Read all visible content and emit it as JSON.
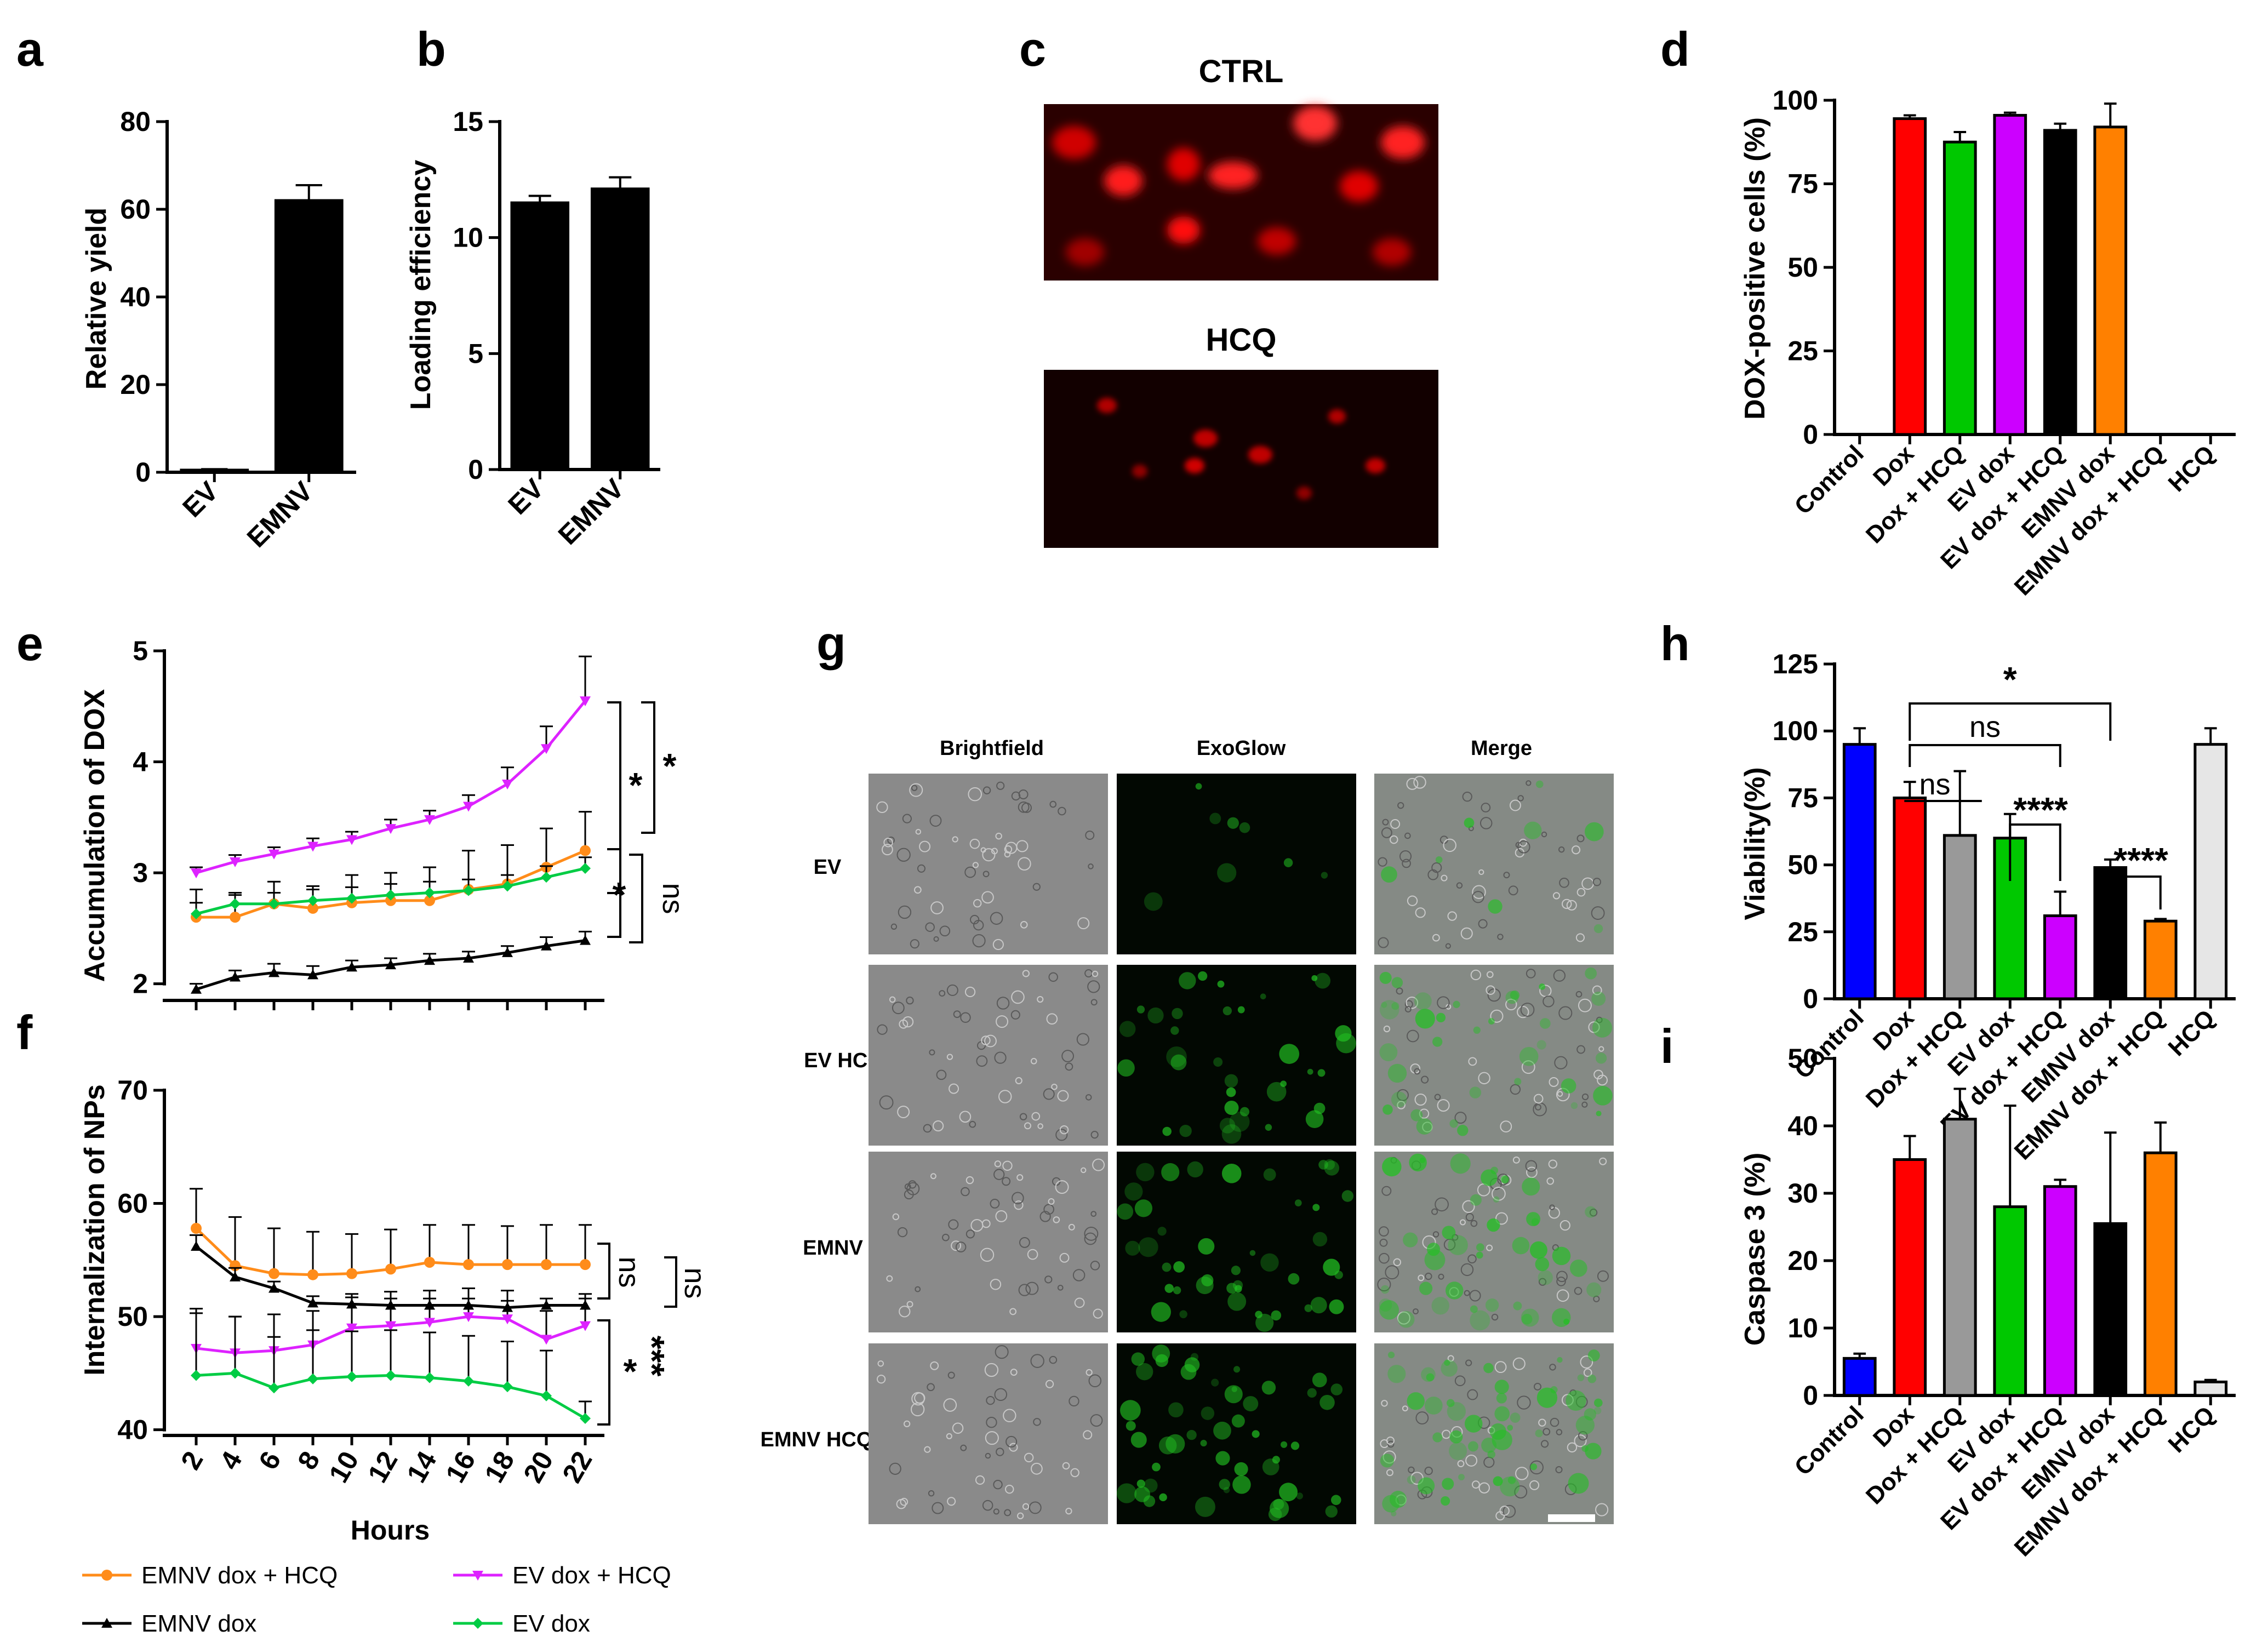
{
  "panel_letters": [
    "a",
    "b",
    "c",
    "d",
    "e",
    "f",
    "g",
    "h",
    "i"
  ],
  "colors": {
    "red": "#ff0000",
    "green": "#00c800",
    "magenta": "#cc00ff",
    "black": "#000000",
    "orange": "#ff8000",
    "blue": "#0000ff",
    "grey": "#999999",
    "lightgrey": "#e6e6e6",
    "orange_line": "#ff8c1a",
    "magenta_line": "#dd22ff",
    "green_line": "#00cc44"
  },
  "chart_data": [
    {
      "id": "a",
      "type": "bar",
      "title": "",
      "xlabel": "",
      "ylabel": "Relative yield",
      "categories": [
        "EV",
        "EMNV"
      ],
      "values": [
        0.5,
        62
      ],
      "errors": [
        0.2,
        3.5
      ],
      "ylim": [
        0,
        80
      ],
      "yticks": [
        0,
        20,
        40,
        60,
        80
      ],
      "bar_colors": [
        "black",
        "black"
      ]
    },
    {
      "id": "b",
      "type": "bar",
      "title": "",
      "xlabel": "",
      "ylabel": "Loading efficiency",
      "categories": [
        "EV",
        "EMNV"
      ],
      "values": [
        11.5,
        12.1
      ],
      "errors": [
        0.3,
        0.5
      ],
      "ylim": [
        0,
        15
      ],
      "yticks": [
        0,
        5,
        10,
        15
      ],
      "bar_colors": [
        "black",
        "black"
      ]
    },
    {
      "id": "d",
      "type": "bar",
      "title": "",
      "xlabel": "",
      "ylabel": "DOX-positive cells (%)",
      "categories": [
        "Control",
        "Dox",
        "Dox + HCQ",
        "EV dox",
        "EV dox + HCQ",
        "EMNV dox",
        "EMNV dox + HCQ",
        "HCQ"
      ],
      "values": [
        0,
        94.5,
        87.5,
        95.5,
        91,
        92,
        0,
        0
      ],
      "errors": [
        0,
        1,
        3,
        0.8,
        2,
        7,
        0,
        0
      ],
      "ylim": [
        0,
        100
      ],
      "yticks": [
        0,
        25,
        50,
        75,
        100
      ],
      "bar_colors": [
        "black",
        "red",
        "green",
        "magenta",
        "black",
        "orange",
        "black",
        "black"
      ]
    },
    {
      "id": "e",
      "type": "line",
      "title": "",
      "xlabel": "",
      "ylabel": "Accumulation of DOX",
      "x": [
        2,
        4,
        6,
        8,
        10,
        12,
        14,
        16,
        18,
        20,
        22
      ],
      "ylim": [
        1.85,
        5
      ],
      "yticks": [
        2,
        3,
        4,
        5
      ],
      "series": [
        {
          "name": "EV dox + HCQ",
          "color": "magenta_line",
          "values": [
            3.0,
            3.1,
            3.17,
            3.24,
            3.3,
            3.4,
            3.48,
            3.6,
            3.8,
            4.12,
            4.55
          ],
          "errors": [
            0.05,
            0.06,
            0.06,
            0.07,
            0.07,
            0.08,
            0.08,
            0.1,
            0.15,
            0.2,
            0.4
          ]
        },
        {
          "name": "EMNV dox + HCQ",
          "color": "orange_line",
          "values": [
            2.6,
            2.6,
            2.72,
            2.68,
            2.73,
            2.75,
            2.75,
            2.85,
            2.9,
            3.05,
            3.2
          ],
          "errors": [
            0.25,
            0.2,
            0.2,
            0.2,
            0.25,
            0.25,
            0.3,
            0.35,
            0.35,
            0.35,
            0.35
          ]
        },
        {
          "name": "EV dox",
          "color": "green_line",
          "values": [
            2.63,
            2.72,
            2.72,
            2.75,
            2.77,
            2.8,
            2.82,
            2.84,
            2.88,
            2.96,
            3.04
          ],
          "errors": [
            0.1,
            0.1,
            0.1,
            0.1,
            0.1,
            0.1,
            0.1,
            0.1,
            0.1,
            0.1,
            0.1
          ]
        },
        {
          "name": "EMNV dox",
          "color": "black",
          "values": [
            1.95,
            2.06,
            2.1,
            2.08,
            2.15,
            2.17,
            2.21,
            2.23,
            2.28,
            2.34,
            2.39
          ],
          "errors": [
            0.05,
            0.06,
            0.08,
            0.08,
            0.06,
            0.06,
            0.06,
            0.06,
            0.06,
            0.08,
            0.08
          ]
        }
      ],
      "significance": [
        {
          "label": "*"
        },
        {
          "label": "*"
        },
        {
          "label": "*"
        },
        {
          "label": "ns"
        }
      ]
    },
    {
      "id": "f",
      "type": "line",
      "title": "",
      "xlabel": "Hours",
      "ylabel": "Internalization of NPs",
      "x": [
        2,
        4,
        6,
        8,
        10,
        12,
        14,
        16,
        18,
        20,
        22
      ],
      "xticks": [
        "2",
        "4",
        "6",
        "8",
        "10",
        "12",
        "14",
        "16",
        "18",
        "20",
        "22"
      ],
      "ylim": [
        39.5,
        70
      ],
      "yticks": [
        40,
        50,
        60,
        70
      ],
      "series": [
        {
          "name": "EMNV dox + HCQ",
          "color": "orange_line",
          "values": [
            57.8,
            54.5,
            53.8,
            53.7,
            53.8,
            54.2,
            54.8,
            54.6,
            54.6,
            54.6,
            54.6
          ],
          "errors": [
            3.5,
            4.3,
            4,
            3.8,
            3.5,
            3.5,
            3.3,
            3.5,
            3.4,
            3.5,
            3.5
          ]
        },
        {
          "name": "EMNV dox",
          "color": "black",
          "values": [
            56.2,
            53.5,
            52.5,
            51.2,
            51.1,
            51,
            51,
            51,
            50.8,
            51,
            51
          ],
          "errors": [
            1,
            0.8,
            0.6,
            0.6,
            0.6,
            0.6,
            0.6,
            0.6,
            0.6,
            0.6,
            0.6
          ]
        },
        {
          "name": "EV dox + HCQ",
          "color": "magenta_line",
          "values": [
            47.2,
            46.8,
            47,
            47.5,
            49,
            49.2,
            49.5,
            50,
            49.8,
            48,
            49.2
          ],
          "errors": [
            3.5,
            3.2,
            3.2,
            3,
            3,
            3,
            2.8,
            2.5,
            2.5,
            2.5,
            2.8
          ]
        },
        {
          "name": "EV dox",
          "color": "green_line",
          "values": [
            44.8,
            45,
            43.7,
            44.5,
            44.7,
            44.8,
            44.6,
            44.3,
            43.8,
            43,
            41
          ],
          "errors": [
            5.5,
            5,
            4.5,
            4.3,
            4,
            4,
            4,
            4,
            4,
            4,
            1.5
          ]
        }
      ],
      "significance": [
        {
          "label": "ns"
        },
        {
          "label": "ns"
        },
        {
          "label": "***"
        },
        {
          "label": "*"
        }
      ]
    },
    {
      "id": "h",
      "type": "bar",
      "title": "",
      "xlabel": "",
      "ylabel": "Viability(%)",
      "categories": [
        "Control",
        "Dox",
        "Dox + HCQ",
        "EV dox",
        "EV dox + HCQ",
        "EMNV dox",
        "EMNV dox + HCQ",
        "HCQ"
      ],
      "values": [
        95,
        75,
        61,
        60,
        31,
        49,
        29,
        95
      ],
      "errors": [
        6,
        6,
        24,
        9,
        9,
        3,
        0.8,
        6
      ],
      "ylim": [
        0,
        125
      ],
      "yticks": [
        0,
        25,
        50,
        75,
        100,
        125
      ],
      "bar_colors": [
        "blue",
        "red",
        "grey",
        "green",
        "magenta",
        "black",
        "orange",
        "lightgrey"
      ],
      "significance": [
        {
          "label": "*"
        },
        {
          "label": "ns"
        },
        {
          "label": "ns"
        },
        {
          "label": "****"
        },
        {
          "label": "****"
        }
      ]
    },
    {
      "id": "i",
      "type": "bar",
      "title": "",
      "xlabel": "",
      "ylabel": "Caspase 3 (%)",
      "categories": [
        "Control",
        "Dox",
        "Dox + HCQ",
        "EV dox",
        "EV dox + HCQ",
        "EMNV dox",
        "EMNV dox + HCQ",
        "HCQ"
      ],
      "values": [
        5.5,
        35,
        41,
        28,
        31,
        25.5,
        36,
        2
      ],
      "errors": [
        0.7,
        3.5,
        4.5,
        15,
        1,
        13.5,
        4.5,
        0.3
      ],
      "ylim": [
        0,
        50
      ],
      "yticks": [
        0,
        10,
        20,
        30,
        40,
        50
      ],
      "bar_colors": [
        "blue",
        "red",
        "grey",
        "green",
        "magenta",
        "black",
        "orange",
        "lightgrey"
      ]
    }
  ],
  "panel_c": {
    "titles": [
      "CTRL",
      "HCQ"
    ]
  },
  "panel_g": {
    "columns": [
      "Brightfield",
      "ExoGlow",
      "Merge"
    ],
    "rows": [
      "EV",
      "EV HCQ",
      "EMNV",
      "EMNV HCQ"
    ]
  },
  "legend": {
    "items": [
      {
        "label": "EMNV dox + HCQ",
        "color": "orange_line",
        "marker": "circle"
      },
      {
        "label": "EV dox + HCQ",
        "color": "magenta_line",
        "marker": "triangle-down"
      },
      {
        "label": "EMNV dox",
        "color": "black",
        "marker": "triangle-up"
      },
      {
        "label": "EV dox",
        "color": "green_line",
        "marker": "diamond"
      }
    ]
  }
}
